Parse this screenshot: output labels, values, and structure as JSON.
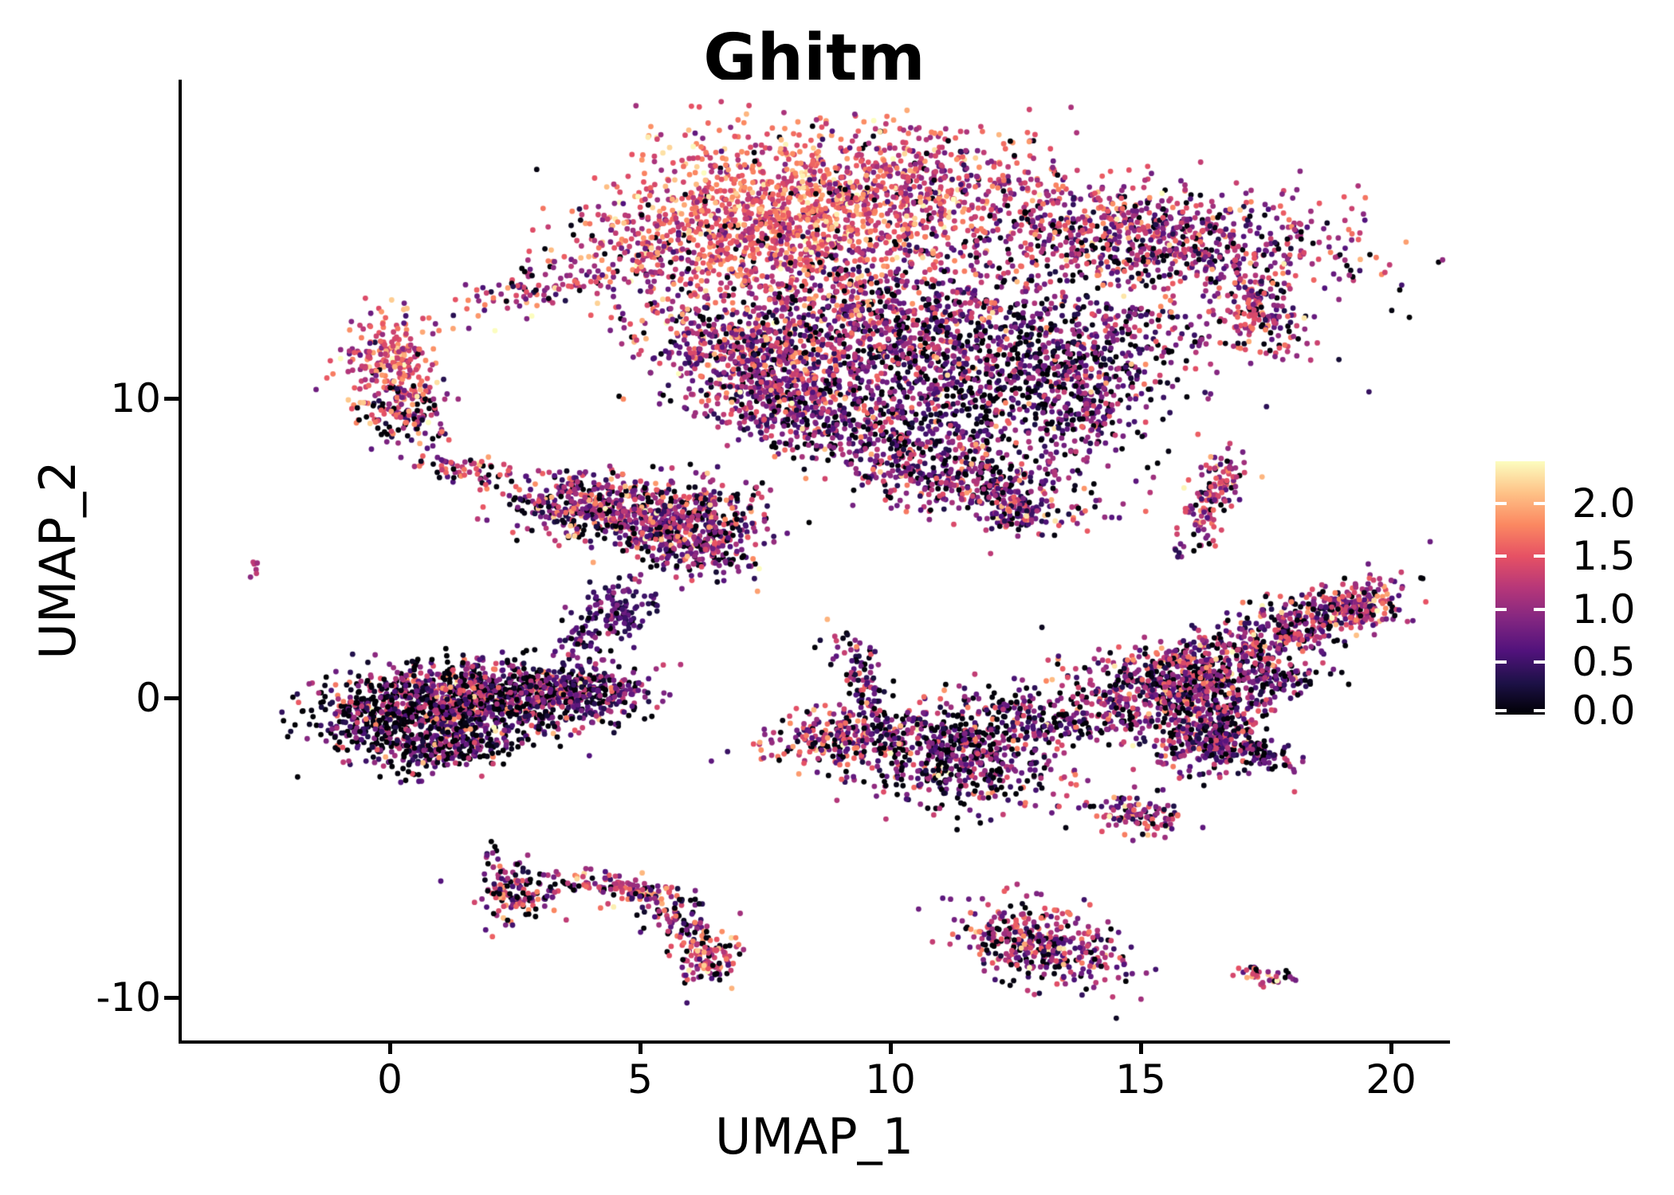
{
  "figure": {
    "title": "Ghitm",
    "background_color": "#ffffff",
    "text_color": "#000000"
  },
  "axes": {
    "x": {
      "label": "UMAP_1",
      "tick_labels": [
        "0",
        "5",
        "10",
        "15",
        "20"
      ],
      "tick_values": [
        0,
        5,
        10,
        15,
        20
      ],
      "range": [
        -4.15,
        21.2
      ]
    },
    "y": {
      "label": "UMAP_2",
      "tick_labels": [
        "10",
        "0",
        "-10"
      ],
      "tick_values": [
        10,
        0,
        -10
      ],
      "range": [
        -11.4,
        20.6
      ]
    }
  },
  "colorbar": {
    "tick_labels": [
      "2.0",
      "1.5",
      "1.0",
      "0.5",
      "0.0"
    ],
    "tick_values": [
      2.0,
      1.5,
      1.0,
      0.5,
      0.0
    ],
    "min": 0.0,
    "max": 2.4,
    "tick_color": "#ffffff"
  },
  "chart_data": {
    "type": "scatter",
    "title": "Ghitm",
    "xlabel": "UMAP_1",
    "ylabel": "UMAP_2",
    "xlim": [
      -4.15,
      21.2
    ],
    "ylim": [
      -11.4,
      20.6
    ],
    "x_ticks": [
      0,
      5,
      10,
      15,
      20
    ],
    "y_ticks": [
      10,
      0,
      -10
    ],
    "grid": false,
    "legend_position": "right",
    "n_points_approx": 14200,
    "color_scale": {
      "type": "continuous",
      "palette": "magma",
      "domain": [
        0,
        2.4
      ],
      "legend_ticks": [
        0.0,
        0.5,
        1.0,
        1.5,
        2.0
      ],
      "stops": [
        [
          0.0,
          "#000004"
        ],
        [
          0.125,
          "#1D1147"
        ],
        [
          0.25,
          "#51127C"
        ],
        [
          0.375,
          "#822681"
        ],
        [
          0.5,
          "#B63779"
        ],
        [
          0.625,
          "#E65164"
        ],
        [
          0.75,
          "#FB8861"
        ],
        [
          0.875,
          "#FEC287"
        ],
        [
          1.0,
          "#FCFDBF"
        ]
      ]
    },
    "cluster_fields": [
      "center_x",
      "center_y",
      "spread_x",
      "spread_y",
      "rotation_deg",
      "n_points",
      "expr_mean",
      "expr_sd",
      "zero_fraction"
    ],
    "clusters": [
      [
        7.6,
        15.9,
        1.55,
        1.45,
        0,
        1350,
        1.55,
        0.38,
        0.05
      ],
      [
        10.4,
        17.2,
        1.3,
        0.95,
        20,
        450,
        1.35,
        0.42,
        0.07
      ],
      [
        14.9,
        15.4,
        2.2,
        0.85,
        -8,
        950,
        1.1,
        0.5,
        0.12
      ],
      [
        17.3,
        13.0,
        0.5,
        0.8,
        15,
        170,
        1.1,
        0.45,
        0.1
      ],
      [
        9.9,
        12.4,
        1.7,
        1.35,
        0,
        1050,
        0.95,
        0.52,
        0.14
      ],
      [
        12.3,
        10.4,
        1.45,
        1.3,
        0,
        600,
        0.6,
        0.5,
        0.25
      ],
      [
        7.4,
        11.3,
        1.4,
        0.8,
        -40,
        600,
        1.1,
        0.5,
        0.1
      ],
      [
        8.1,
        9.4,
        1.15,
        0.6,
        -25,
        330,
        0.9,
        0.5,
        0.13
      ],
      [
        2.8,
        13.6,
        0.8,
        0.35,
        35,
        90,
        1.1,
        0.5,
        0.15
      ],
      [
        5.0,
        14.6,
        0.95,
        0.85,
        -30,
        160,
        1.25,
        0.5,
        0.1
      ],
      [
        14.2,
        12.3,
        1.7,
        0.8,
        -12,
        260,
        0.8,
        0.5,
        0.2
      ],
      [
        13.8,
        10.1,
        0.55,
        1.15,
        0,
        220,
        0.85,
        0.48,
        0.16
      ],
      [
        11.6,
        7.2,
        1.25,
        0.6,
        -18,
        420,
        0.9,
        0.5,
        0.16
      ],
      [
        12.6,
        6.3,
        0.35,
        0.35,
        0,
        90,
        0.95,
        0.5,
        0.15
      ],
      [
        10.3,
        8.7,
        0.8,
        0.6,
        0,
        130,
        0.7,
        0.5,
        0.2
      ],
      [
        0.05,
        11.1,
        0.5,
        0.9,
        0,
        250,
        1.5,
        0.42,
        0.04
      ],
      [
        0.3,
        9.5,
        0.48,
        0.55,
        0,
        120,
        0.9,
        0.55,
        0.16
      ],
      [
        1.6,
        7.6,
        0.55,
        0.26,
        -12,
        60,
        1.2,
        0.55,
        0.1
      ],
      [
        -2.68,
        4.55,
        0.14,
        0.18,
        0,
        6,
        1.4,
        0.3,
        0
      ],
      [
        4.3,
        6.35,
        1.0,
        0.55,
        -12,
        520,
        1.05,
        0.55,
        0.16
      ],
      [
        6.0,
        5.95,
        0.8,
        0.6,
        15,
        300,
        1.0,
        0.55,
        0.16
      ],
      [
        6.2,
        4.9,
        0.6,
        0.5,
        0,
        160,
        0.9,
        0.5,
        0.16
      ],
      [
        4.55,
        2.95,
        0.38,
        0.5,
        -12,
        120,
        0.55,
        0.25,
        0.1
      ],
      [
        3.85,
        1.8,
        0.3,
        0.55,
        -18,
        50,
        0.6,
        0.3,
        0.12
      ],
      [
        0.6,
        -0.45,
        1.05,
        0.75,
        8,
        900,
        0.75,
        0.6,
        0.3
      ],
      [
        2.6,
        0.1,
        1.1,
        0.55,
        -8,
        550,
        0.8,
        0.58,
        0.24
      ],
      [
        4.05,
        0.3,
        0.6,
        0.42,
        0,
        200,
        0.7,
        0.48,
        0.2
      ],
      [
        1.2,
        -1.6,
        0.85,
        0.45,
        10,
        230,
        0.7,
        0.55,
        0.28
      ],
      [
        9.0,
        -1.25,
        0.78,
        0.5,
        10,
        260,
        1.1,
        0.55,
        0.16
      ],
      [
        9.45,
        0.6,
        0.2,
        0.85,
        14,
        90,
        0.8,
        0.5,
        0.16
      ],
      [
        11.4,
        -1.9,
        1.0,
        0.9,
        -15,
        600,
        0.8,
        0.55,
        0.24
      ],
      [
        13.0,
        -0.6,
        0.85,
        0.4,
        -10,
        140,
        0.8,
        0.5,
        0.26
      ],
      [
        15.6,
        0.3,
        1.05,
        0.8,
        20,
        700,
        0.95,
        0.52,
        0.19
      ],
      [
        18.0,
        2.3,
        1.25,
        0.45,
        36,
        460,
        1.05,
        0.5,
        0.16
      ],
      [
        19.35,
        3.1,
        0.4,
        0.35,
        30,
        110,
        1.1,
        0.5,
        0.12
      ],
      [
        16.4,
        -1.2,
        0.5,
        0.8,
        -8,
        260,
        0.85,
        0.52,
        0.2
      ],
      [
        17.1,
        -1.75,
        0.6,
        0.28,
        -22,
        120,
        0.8,
        0.5,
        0.2
      ],
      [
        17.6,
        0.6,
        0.55,
        0.3,
        10,
        90,
        0.7,
        0.5,
        0.26
      ],
      [
        14.9,
        -3.9,
        0.55,
        0.33,
        -28,
        110,
        1.0,
        0.55,
        0.16
      ],
      [
        16.4,
        6.7,
        0.24,
        0.72,
        -12,
        130,
        1.05,
        0.48,
        0.08
      ],
      [
        15.9,
        5.0,
        0.15,
        0.2,
        0,
        8,
        0.7,
        0.4,
        0.2
      ],
      [
        2.5,
        -6.5,
        0.42,
        0.45,
        0,
        130,
        1.1,
        0.55,
        0.2
      ],
      [
        2.05,
        -5.4,
        0.1,
        0.35,
        8,
        10,
        0.6,
        0.4,
        0.3
      ],
      [
        3.4,
        -6.3,
        0.35,
        0.14,
        0,
        14,
        0.9,
        0.6,
        0.25
      ],
      [
        4.65,
        -6.35,
        0.6,
        0.22,
        -15,
        110,
        1.3,
        0.5,
        0.12
      ],
      [
        5.8,
        -7.4,
        0.3,
        0.55,
        28,
        85,
        0.9,
        0.55,
        0.2
      ],
      [
        6.4,
        -8.75,
        0.32,
        0.48,
        -15,
        120,
        1.3,
        0.55,
        0.13
      ],
      [
        13.0,
        -8.2,
        0.95,
        0.6,
        -35,
        380,
        1.05,
        0.55,
        0.18
      ],
      [
        17.45,
        -9.3,
        0.32,
        0.14,
        -18,
        40,
        1.25,
        0.45,
        0.08
      ]
    ]
  }
}
